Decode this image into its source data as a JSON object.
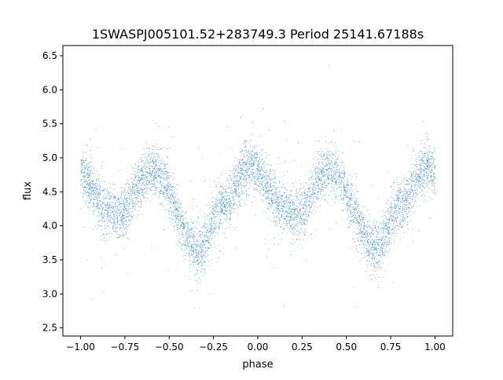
{
  "chart_data": {
    "type": "scatter",
    "title": "1SWASPJ005101.52+283749.3 Period 25141.67188s",
    "xlabel": "phase",
    "ylabel": "flux",
    "xlim": [
      -1.1,
      1.1
    ],
    "ylim": [
      2.38,
      6.65
    ],
    "xticks": [
      -1.0,
      -0.75,
      -0.5,
      -0.25,
      0.0,
      0.25,
      0.5,
      0.75,
      1.0
    ],
    "xtick_labels": [
      "−1.00",
      "−0.75",
      "−0.50",
      "−0.25",
      "0.00",
      "0.25",
      "0.50",
      "0.75",
      "1.00"
    ],
    "yticks": [
      2.5,
      3.0,
      3.5,
      4.0,
      4.5,
      5.0,
      5.5,
      6.0,
      6.5
    ],
    "ytick_labels": [
      "2.5",
      "3.0",
      "3.5",
      "4.0",
      "4.5",
      "5.0",
      "5.5",
      "6.0",
      "6.5"
    ],
    "grid": false,
    "series_color": "#1f77b4",
    "light_curve_profile": {
      "phase": [
        -1.0,
        -0.85,
        -0.8,
        -0.6,
        -0.33,
        -0.2,
        -0.05,
        0.15,
        0.2,
        0.4,
        0.67,
        0.8,
        0.95,
        1.0
      ],
      "flux": [
        4.75,
        4.25,
        4.15,
        4.82,
        3.65,
        4.3,
        4.88,
        4.25,
        4.15,
        4.82,
        3.65,
        4.3,
        4.88,
        4.78
      ]
    },
    "scatter_band_width": 0.18,
    "outlier_range": [
      2.6,
      6.4
    ]
  }
}
